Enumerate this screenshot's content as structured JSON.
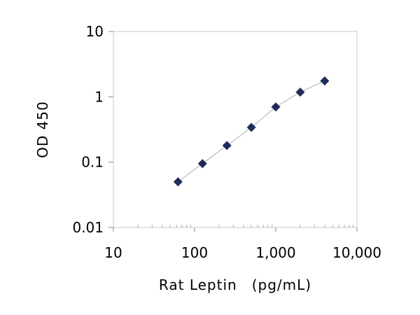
{
  "chart_data": {
    "type": "scatter",
    "title": "",
    "xlabel": "Rat Leptin　(pg/mL)",
    "ylabel": "OD 450",
    "xscale": "log",
    "yscale": "log",
    "xlim": [
      10,
      10000
    ],
    "ylim": [
      0.01,
      10
    ],
    "grid": false,
    "legend": "none",
    "marker": "diamond",
    "marker_color": "#1f2d5c",
    "trendline": true,
    "trendline_color": "#b0b0b0",
    "x_ticks": [
      {
        "value": 10,
        "label": "10"
      },
      {
        "value": 100,
        "label": "100"
      },
      {
        "value": 1000,
        "label": "1,000"
      },
      {
        "value": 10000,
        "label": "10,000"
      }
    ],
    "y_ticks": [
      {
        "value": 10,
        "label": "10"
      },
      {
        "value": 1,
        "label": "1"
      },
      {
        "value": 0.1,
        "label": "0.1"
      },
      {
        "value": 0.01,
        "label": "0.01"
      }
    ],
    "series": [
      {
        "x": [
          62.5,
          125,
          250,
          500,
          1000,
          2000,
          4000
        ],
        "y": [
          0.05,
          0.095,
          0.18,
          0.34,
          0.7,
          1.18,
          1.75
        ]
      }
    ]
  }
}
